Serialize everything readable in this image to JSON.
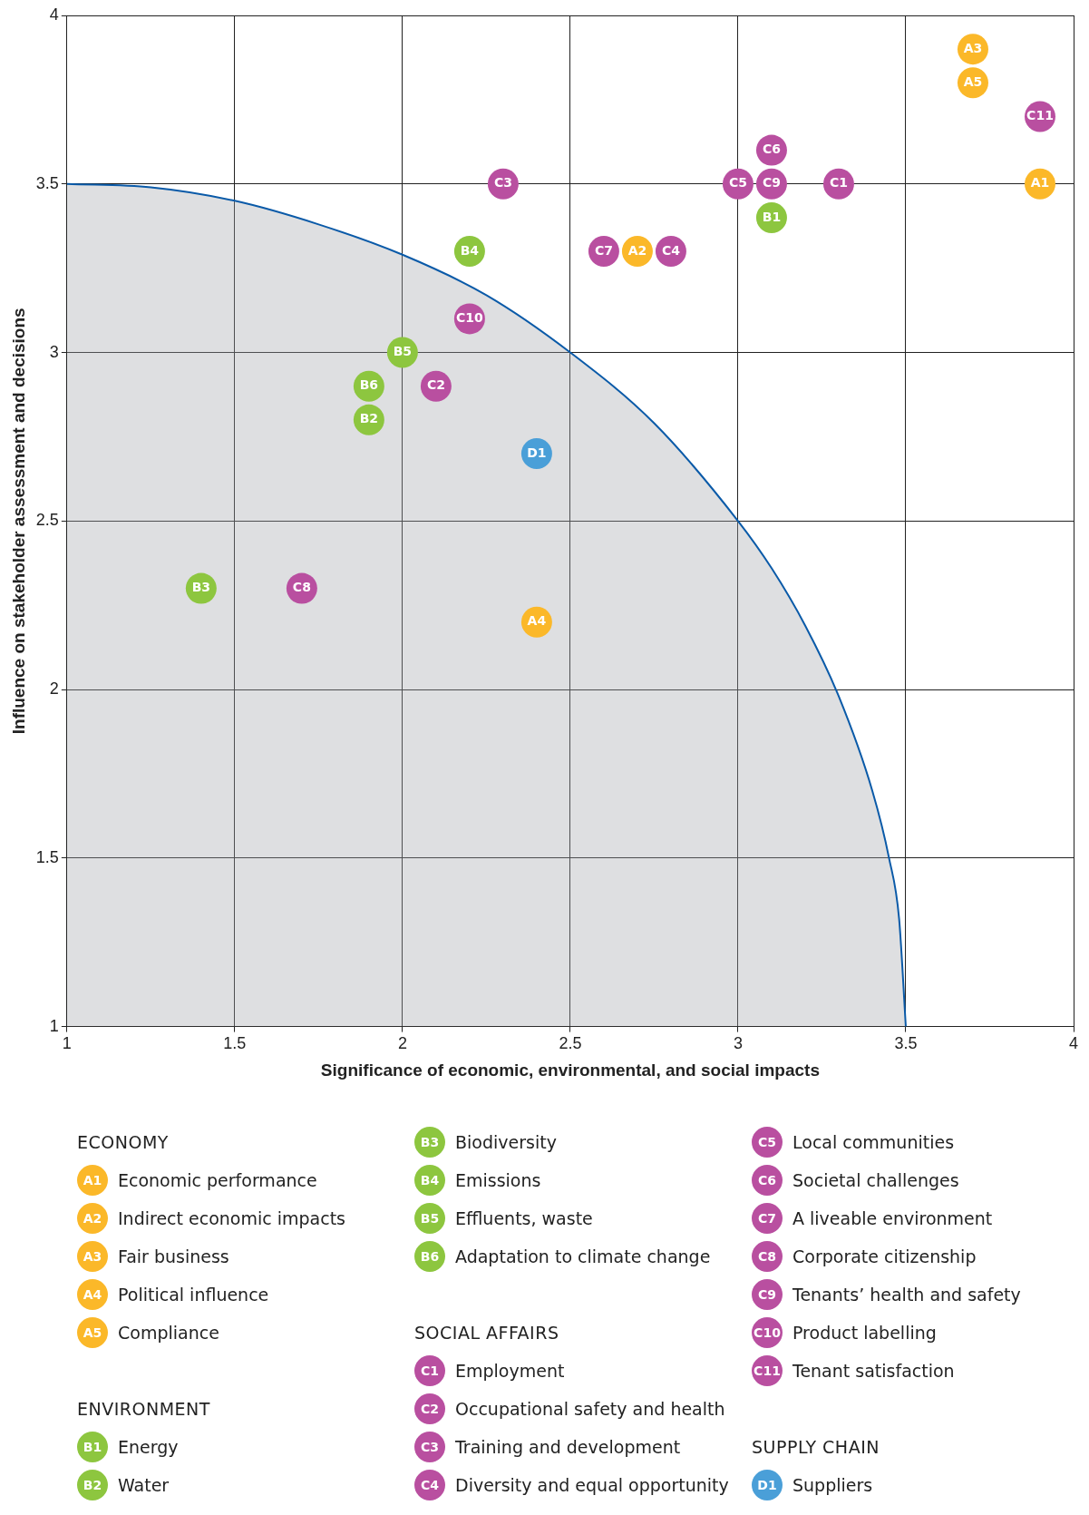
{
  "chart_data": {
    "type": "scatter",
    "xlabel": "Significance of economic, environmental, and social impacts",
    "ylabel": "Influence on stakeholder assessment and decisions",
    "xlim": [
      1,
      4
    ],
    "ylim": [
      1,
      4
    ],
    "xticks": [
      1,
      1.5,
      2,
      2.5,
      3,
      3.5,
      4
    ],
    "yticks": [
      1,
      1.5,
      2,
      2.5,
      3,
      3.5,
      4
    ],
    "grid": true,
    "legend": "bottom",
    "marker": "circle",
    "series": [
      {
        "type": "area",
        "marker": "none",
        "color": "#0a5aa8",
        "x": [
          1,
          1.25,
          1.5,
          1.75,
          2,
          2.25,
          2.5,
          2.75,
          3,
          3.1,
          3.2,
          3.3,
          3.4,
          3.45,
          3.48,
          3.5
        ],
        "values": [
          3.5,
          3.49,
          3.45,
          3.38,
          3.29,
          3.17,
          3,
          2.79,
          2.5,
          2.36,
          2.19,
          1.98,
          1.7,
          1.5,
          1.32,
          1
        ]
      },
      {
        "name": "Economic performance",
        "color": "#fbb829",
        "x": [
          3.9
        ],
        "values": [
          3.5
        ]
      },
      {
        "name": "Indirect economic impacts",
        "color": "#fbb829",
        "x": [
          2.7
        ],
        "values": [
          3.3
        ]
      },
      {
        "name": "Fair business",
        "color": "#fbb829",
        "x": [
          3.7
        ],
        "values": [
          3.9
        ]
      },
      {
        "name": "Political influence",
        "color": "#fbb829",
        "x": [
          2.4
        ],
        "values": [
          2.2
        ]
      },
      {
        "name": "Compliance",
        "color": "#fbb829",
        "x": [
          3.7
        ],
        "values": [
          3.8
        ]
      },
      {
        "name": "Energy",
        "color": "#8dc63f",
        "x": [
          3.1
        ],
        "values": [
          3.4
        ]
      },
      {
        "name": "Water",
        "color": "#8dc63f",
        "x": [
          1.9
        ],
        "values": [
          2.8
        ]
      },
      {
        "name": "Biodiversity",
        "color": "#8dc63f",
        "x": [
          1.4
        ],
        "values": [
          2.3
        ]
      },
      {
        "name": "Emissions",
        "color": "#8dc63f",
        "x": [
          2.2
        ],
        "values": [
          3.3
        ]
      },
      {
        "name": "Effluents, waste",
        "color": "#8dc63f",
        "x": [
          2.0
        ],
        "values": [
          3.0
        ]
      },
      {
        "name": "Adaptation to climate change",
        "color": "#8dc63f",
        "x": [
          1.9
        ],
        "values": [
          2.9
        ]
      },
      {
        "name": "Employment",
        "color": "#b94fa0",
        "x": [
          3.3
        ],
        "values": [
          3.5
        ]
      },
      {
        "name": "Occupational safety and health",
        "color": "#b94fa0",
        "x": [
          2.1
        ],
        "values": [
          2.9
        ]
      },
      {
        "name": "Training and development",
        "color": "#b94fa0",
        "x": [
          2.3
        ],
        "values": [
          3.5
        ]
      },
      {
        "name": "Diversity and equal opportunity",
        "color": "#b94fa0",
        "x": [
          2.8
        ],
        "values": [
          3.3
        ]
      },
      {
        "name": "Local communities",
        "color": "#b94fa0",
        "x": [
          3.0
        ],
        "values": [
          3.5
        ]
      },
      {
        "name": "Societal challenges",
        "color": "#b94fa0",
        "x": [
          3.1
        ],
        "values": [
          3.6
        ]
      },
      {
        "name": "A liveable environment",
        "color": "#b94fa0",
        "x": [
          2.6
        ],
        "values": [
          3.3
        ]
      },
      {
        "name": "Corporate citizenship",
        "color": "#b94fa0",
        "x": [
          1.7
        ],
        "values": [
          2.3
        ]
      },
      {
        "name": "Tenants’ health and safety",
        "color": "#b94fa0",
        "x": [
          3.1
        ],
        "values": [
          3.5
        ]
      },
      {
        "name": "Product labelling",
        "color": "#b94fa0",
        "x": [
          2.2
        ],
        "values": [
          3.1
        ]
      },
      {
        "name": "Tenant satisfaction",
        "color": "#b94fa0",
        "x": [
          3.9
        ],
        "values": [
          3.7
        ]
      },
      {
        "name": "Suppliers",
        "color": "#4a9fd8",
        "x": [
          2.4
        ],
        "values": [
          2.7
        ]
      }
    ],
    "annotations": [
      {
        "text": "A1",
        "x": 3.9,
        "y": 3.5
      },
      {
        "text": "A2",
        "x": 2.7,
        "y": 3.3
      },
      {
        "text": "A3",
        "x": 3.7,
        "y": 3.9
      },
      {
        "text": "A4",
        "x": 2.4,
        "y": 2.2
      },
      {
        "text": "A5",
        "x": 3.7,
        "y": 3.8
      },
      {
        "text": "B1",
        "x": 3.1,
        "y": 3.4
      },
      {
        "text": "B2",
        "x": 1.9,
        "y": 2.8
      },
      {
        "text": "B3",
        "x": 1.4,
        "y": 2.3
      },
      {
        "text": "B4",
        "x": 2.2,
        "y": 3.3
      },
      {
        "text": "B5",
        "x": 2.0,
        "y": 3.0
      },
      {
        "text": "B6",
        "x": 1.9,
        "y": 2.9
      },
      {
        "text": "C1",
        "x": 3.3,
        "y": 3.5
      },
      {
        "text": "C2",
        "x": 2.1,
        "y": 2.9
      },
      {
        "text": "C3",
        "x": 2.3,
        "y": 3.5
      },
      {
        "text": "C4",
        "x": 2.8,
        "y": 3.3
      },
      {
        "text": "C5",
        "x": 3.0,
        "y": 3.5
      },
      {
        "text": "C6",
        "x": 3.1,
        "y": 3.6
      },
      {
        "text": "C7",
        "x": 2.6,
        "y": 3.3
      },
      {
        "text": "C8",
        "x": 1.7,
        "y": 2.3
      },
      {
        "text": "C9",
        "x": 3.1,
        "y": 3.5
      },
      {
        "text": "C10",
        "x": 2.2,
        "y": 3.1
      },
      {
        "text": "C11",
        "x": 3.9,
        "y": 3.7
      },
      {
        "text": "D1",
        "x": 2.4,
        "y": 2.7
      },
      "ECONOMY",
      "ENVIRONMENT",
      "SOCIAL AFFAIRS",
      "SUPPLY CHAIN"
    ]
  }
}
